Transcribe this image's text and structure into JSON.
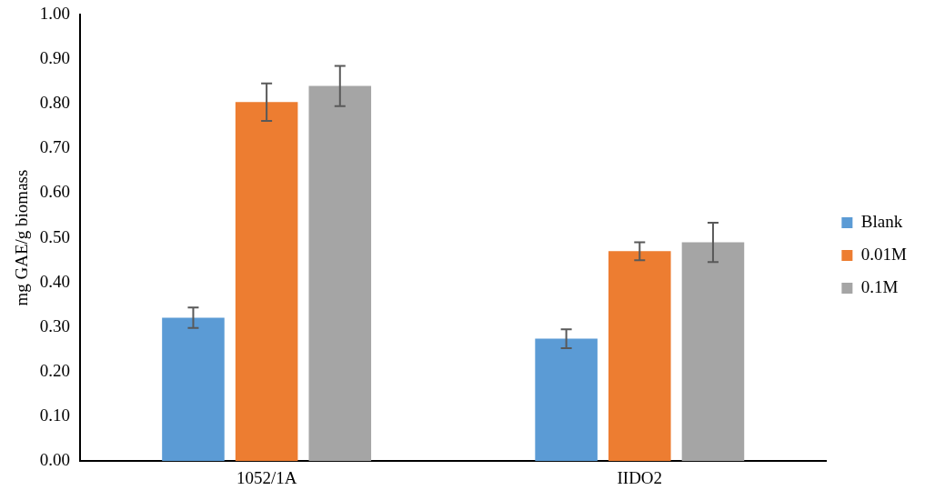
{
  "chart_data": {
    "type": "bar",
    "ylabel": "mg GAE/g biomass",
    "categories": [
      "1052/1A",
      "IIDO2"
    ],
    "series": [
      {
        "name": "Blank",
        "color": "#5b9bd5",
        "values": [
          0.321,
          0.274
        ],
        "errors": [
          0.023,
          0.021
        ]
      },
      {
        "name": "0.01M",
        "color": "#ed7d31",
        "values": [
          0.804,
          0.47
        ],
        "errors": [
          0.042,
          0.02
        ]
      },
      {
        "name": "0.1M",
        "color": "#a5a5a5",
        "values": [
          0.84,
          0.49
        ],
        "errors": [
          0.045,
          0.044
        ]
      }
    ],
    "ylim": [
      0,
      1
    ],
    "yticks": [
      {
        "value": 0,
        "label": "0.00"
      },
      {
        "value": 0.1,
        "label": "0.10"
      },
      {
        "value": 0.2,
        "label": "0.20"
      },
      {
        "value": 0.3,
        "label": "0.30"
      },
      {
        "value": 0.4,
        "label": "0.40"
      },
      {
        "value": 0.5,
        "label": "0.50"
      },
      {
        "value": 0.6,
        "label": "0.60"
      },
      {
        "value": 0.7,
        "label": "0.70"
      },
      {
        "value": 0.8,
        "label": "0.80"
      },
      {
        "value": 0.9,
        "label": "0.90"
      },
      {
        "value": 1,
        "label": "1.00"
      }
    ],
    "grid": false,
    "legend": "right"
  }
}
